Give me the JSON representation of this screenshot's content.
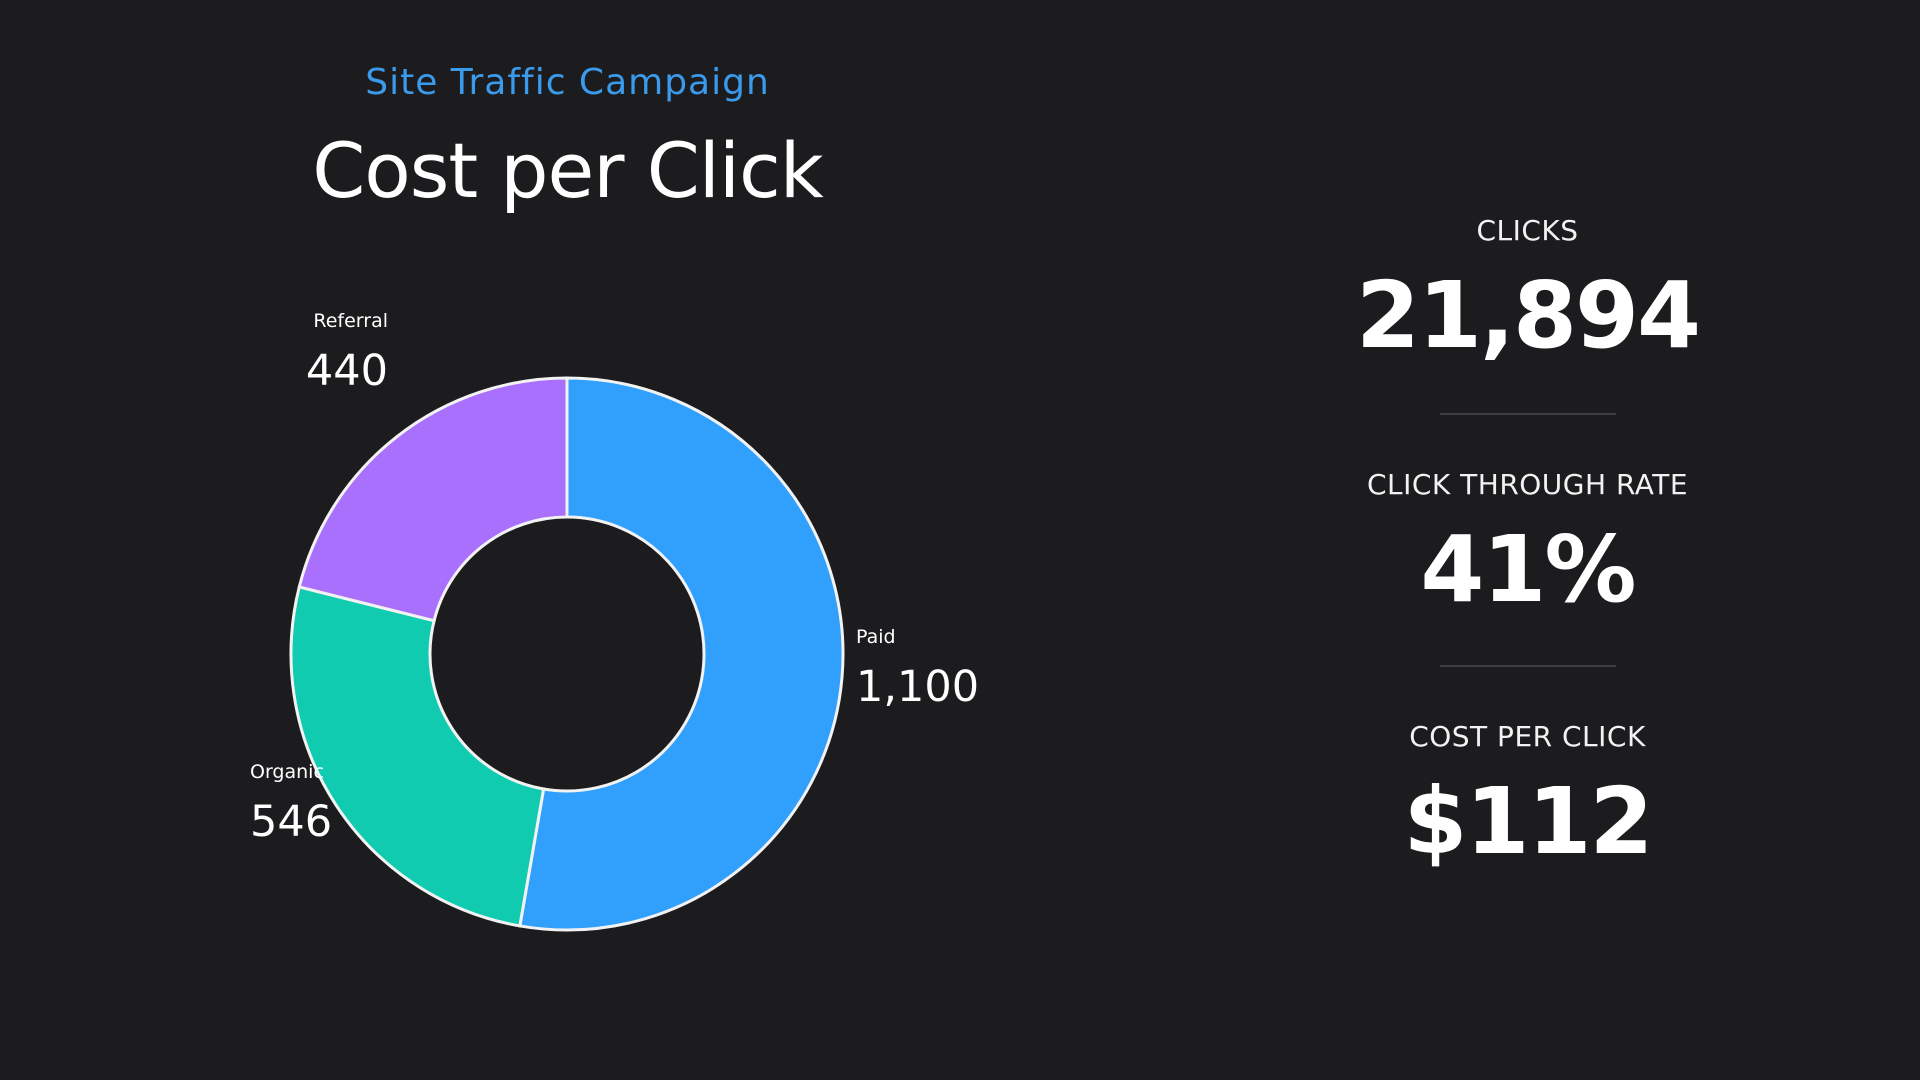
{
  "header": {
    "subtitle": "Site Traffic Campaign",
    "title": "Cost per Click"
  },
  "chart_data": {
    "type": "pie",
    "donut": true,
    "categories": [
      "Paid",
      "Organic",
      "Referral"
    ],
    "values": [
      1100,
      546,
      440
    ],
    "value_labels": [
      "1,100",
      "546",
      "440"
    ],
    "colors": [
      "#319ffc",
      "#11cbb0",
      "#a96ffd"
    ],
    "title": "",
    "legend": "none"
  },
  "stats": [
    {
      "label": "CLICKS",
      "value": "21,894"
    },
    {
      "label": "CLICK THROUGH RATE",
      "value": "41%"
    },
    {
      "label": "COST PER CLICK",
      "value": "$112"
    }
  ]
}
